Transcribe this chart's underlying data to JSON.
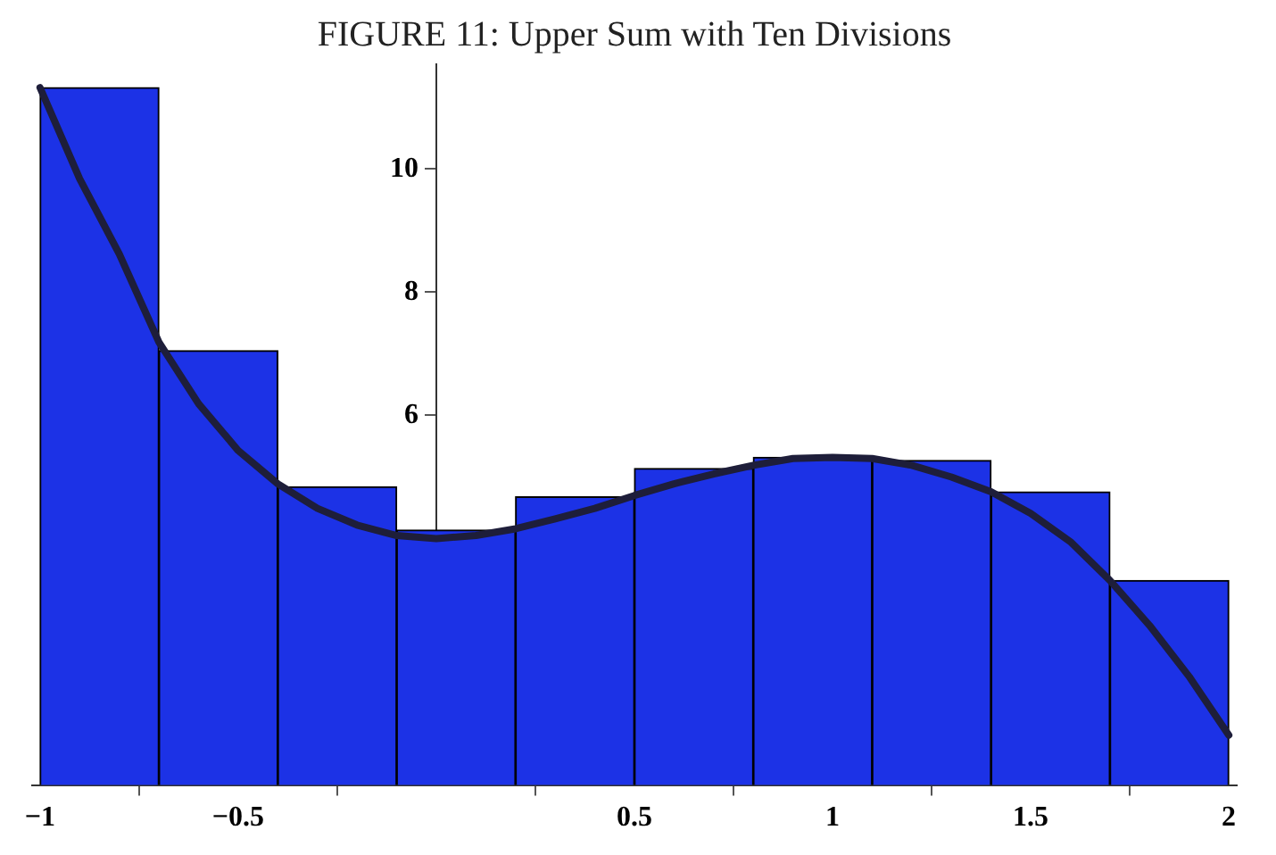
{
  "chart_data": {
    "type": "histogram",
    "title": "FIGURE 11: Upper Sum with Ten Divisions",
    "series": [
      {
        "color": "#1c32e6",
        "bins": [
          -1,
          -0.7,
          -0.4,
          -0.1,
          0.2,
          0.5,
          0.8,
          1.1,
          1.4,
          1.7,
          2
        ],
        "values": [
          11.32,
          7.05,
          4.84,
          4.14,
          4.68,
          5.14,
          5.32,
          5.27,
          4.76,
          3.32
        ]
      },
      {
        "type": "line",
        "color": "#1e1e3a",
        "x": [
          -1,
          -0.9,
          -0.8,
          -0.7,
          -0.6,
          -0.5,
          -0.4,
          -0.3,
          -0.2,
          -0.1,
          0,
          0.1,
          0.2,
          0.3,
          0.4,
          0.5,
          0.6,
          0.7,
          0.8,
          0.9,
          1,
          1.1,
          1.2,
          1.3,
          1.4,
          1.5,
          1.6,
          1.7,
          1.8,
          1.9,
          2
        ],
        "values": [
          11.32,
          9.84,
          8.62,
          7.19,
          6.19,
          5.43,
          4.89,
          4.49,
          4.22,
          4.05,
          4.0,
          4.05,
          4.16,
          4.32,
          4.49,
          4.7,
          4.89,
          5.05,
          5.19,
          5.3,
          5.32,
          5.3,
          5.19,
          5.0,
          4.76,
          4.41,
          3.95,
          3.32,
          2.59,
          1.76,
          0.81
        ]
      }
    ],
    "xlim": [
      -1.02,
      2.02
    ],
    "xticks": [
      -1,
      -0.5,
      {
        "value": 0,
        "label": null
      },
      0.5,
      1,
      1.5,
      2
    ],
    "ylim": [
      0,
      11.7
    ],
    "yticks": [
      6,
      8,
      10
    ],
    "legend": false,
    "marker": "none",
    "line_style": "solid"
  }
}
